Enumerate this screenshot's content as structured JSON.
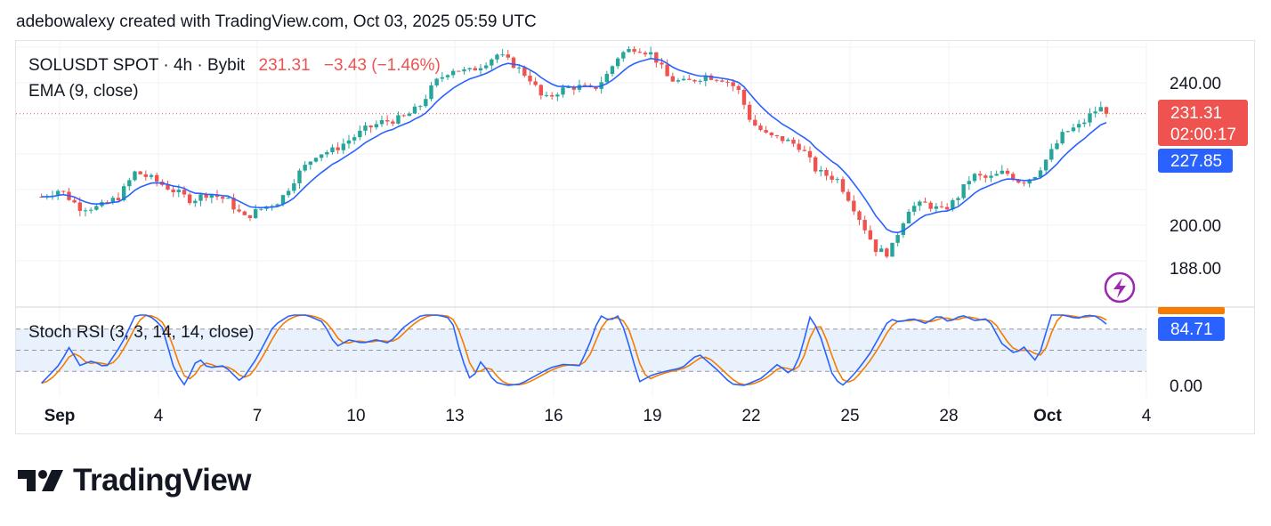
{
  "caption": "adebowalexy created with TradingView.com, Oct 03, 2025 05:59 UTC",
  "legend": {
    "symbol": "SOLUSDT SPOT · 4h · Bybit",
    "last_price": "231.31",
    "change": "−3.43 (−1.46%)",
    "ema_label": "EMA (9, close)",
    "stoch_label": "Stoch RSI (3, 3, 14, 14, close)"
  },
  "price_axis": {
    "ticks": [
      {
        "value": 240,
        "label": "240.00"
      },
      {
        "value": 200,
        "label": "200.00"
      },
      {
        "value": 188,
        "label": "188.00"
      }
    ]
  },
  "stoch_axis": {
    "ticks": [
      {
        "value": 0,
        "label": "0.00"
      }
    ]
  },
  "tags": {
    "price": "231.31",
    "countdown": "02:00:17",
    "ema": "227.85",
    "stoch": "84.71"
  },
  "colors": {
    "up": "#26a69a",
    "down": "#ef5350",
    "ema": "#2962ff",
    "k_line": "#2962ff",
    "d_line": "#f57c00",
    "stoch_band": "#e8f1fc",
    "price_tag": "#ef5350",
    "ema_tag": "#2962ff",
    "stoch_tag_blue": "#2962ff",
    "stoch_tag_orange": "#f57c00",
    "lightning": "#9c27b0"
  },
  "logo_text": "TradingView",
  "lightning_icon": "lightning-bolt-icon",
  "chart_data": [
    {
      "type": "candlestick",
      "title": "SOLUSDT SPOT · 4h · Bybit",
      "x_labels": [
        {
          "day": 1,
          "label": "Sep"
        },
        {
          "day": 4,
          "label": "4"
        },
        {
          "day": 7,
          "label": "7"
        },
        {
          "day": 10,
          "label": "10"
        },
        {
          "day": 13,
          "label": "13"
        },
        {
          "day": 16,
          "label": "16"
        },
        {
          "day": 19,
          "label": "19"
        },
        {
          "day": 22,
          "label": "22"
        },
        {
          "day": 25,
          "label": "25"
        },
        {
          "day": 28,
          "label": "28"
        },
        {
          "day": 31,
          "label": "Oct"
        },
        {
          "day": 34,
          "label": "4"
        }
      ],
      "ylim": [
        180,
        250
      ],
      "bars_per_day": 6,
      "x_start_day": 0.45,
      "close_anchors": [
        [
          0.45,
          208
        ],
        [
          1.0,
          210
        ],
        [
          1.6,
          205
        ],
        [
          2.2,
          205
        ],
        [
          2.8,
          208
        ],
        [
          3.3,
          215
        ],
        [
          3.8,
          213
        ],
        [
          4.4,
          210
        ],
        [
          5.0,
          207
        ],
        [
          5.5,
          209
        ],
        [
          6.1,
          207
        ],
        [
          6.6,
          202
        ],
        [
          7.2,
          205
        ],
        [
          7.7,
          207
        ],
        [
          8.2,
          214
        ],
        [
          8.8,
          220
        ],
        [
          9.3,
          221
        ],
        [
          9.8,
          224
        ],
        [
          10.3,
          227
        ],
        [
          10.8,
          229
        ],
        [
          11.4,
          230
        ],
        [
          11.9,
          233
        ],
        [
          12.4,
          240
        ],
        [
          12.9,
          244
        ],
        [
          13.4,
          243
        ],
        [
          13.8,
          245
        ],
        [
          14.3,
          248
        ],
        [
          14.8,
          245
        ],
        [
          15.3,
          241
        ],
        [
          15.7,
          235
        ],
        [
          16.2,
          238
        ],
        [
          16.7,
          239
        ],
        [
          17.2,
          238
        ],
        [
          17.6,
          242
        ],
        [
          18.0,
          248
        ],
        [
          18.5,
          250
        ],
        [
          19.0,
          248
        ],
        [
          19.5,
          241
        ],
        [
          20.0,
          240
        ],
        [
          20.6,
          242
        ],
        [
          21.2,
          241
        ],
        [
          21.6,
          238
        ],
        [
          22.0,
          229
        ],
        [
          22.5,
          225
        ],
        [
          23.0,
          224
        ],
        [
          23.5,
          222
        ],
        [
          24.0,
          215
        ],
        [
          24.6,
          213
        ],
        [
          25.0,
          207
        ],
        [
          25.4,
          200
        ],
        [
          25.8,
          193
        ],
        [
          26.2,
          192
        ],
        [
          26.5,
          199
        ],
        [
          26.8,
          205
        ],
        [
          27.3,
          206
        ],
        [
          27.8,
          204
        ],
        [
          28.2,
          207
        ],
        [
          28.7,
          214
        ],
        [
          29.2,
          213
        ],
        [
          29.7,
          215
        ],
        [
          30.2,
          212
        ],
        [
          30.6,
          214
        ],
        [
          31.0,
          219
        ],
        [
          31.5,
          226
        ],
        [
          32.0,
          228
        ],
        [
          32.4,
          232
        ],
        [
          32.7,
          233
        ],
        [
          32.85,
          231.31
        ]
      ],
      "series": [
        {
          "name": "EMA (9, close)",
          "last_value": 227.85
        }
      ],
      "last": {
        "price": 231.31,
        "change": -3.43,
        "change_pct": -1.46
      }
    },
    {
      "type": "line",
      "title": "Stoch RSI (3, 3, 14, 14, close)",
      "ylim": [
        0,
        100
      ],
      "bands": [
        20,
        50,
        80
      ],
      "series": [
        {
          "name": "K",
          "last_value": 84.71
        }
      ],
      "k_anchors": [
        [
          0.45,
          3
        ],
        [
          1.0,
          30
        ],
        [
          1.3,
          55
        ],
        [
          1.6,
          28
        ],
        [
          2.0,
          35
        ],
        [
          2.4,
          25
        ],
        [
          2.9,
          60
        ],
        [
          3.3,
          100
        ],
        [
          3.7,
          100
        ],
        [
          4.1,
          85
        ],
        [
          4.5,
          20
        ],
        [
          4.8,
          0
        ],
        [
          5.2,
          40
        ],
        [
          5.5,
          25
        ],
        [
          6.0,
          28
        ],
        [
          6.5,
          5
        ],
        [
          7.0,
          40
        ],
        [
          7.5,
          85
        ],
        [
          8.0,
          100
        ],
        [
          8.5,
          100
        ],
        [
          9.0,
          90
        ],
        [
          9.4,
          55
        ],
        [
          9.8,
          65
        ],
        [
          10.2,
          60
        ],
        [
          10.6,
          65
        ],
        [
          11.0,
          60
        ],
        [
          11.5,
          85
        ],
        [
          12.0,
          100
        ],
        [
          12.5,
          100
        ],
        [
          12.9,
          95
        ],
        [
          13.2,
          40
        ],
        [
          13.5,
          5
        ],
        [
          13.8,
          35
        ],
        [
          14.2,
          5
        ],
        [
          14.6,
          0
        ],
        [
          15.0,
          2
        ],
        [
          15.5,
          15
        ],
        [
          15.9,
          25
        ],
        [
          16.3,
          30
        ],
        [
          16.8,
          28
        ],
        [
          17.1,
          60
        ],
        [
          17.4,
          100
        ],
        [
          17.7,
          92
        ],
        [
          18.0,
          100
        ],
        [
          18.3,
          55
        ],
        [
          18.6,
          5
        ],
        [
          19.0,
          15
        ],
        [
          19.4,
          20
        ],
        [
          19.9,
          25
        ],
        [
          20.4,
          45
        ],
        [
          20.9,
          25
        ],
        [
          21.4,
          2
        ],
        [
          21.8,
          0
        ],
        [
          22.3,
          10
        ],
        [
          22.8,
          30
        ],
        [
          23.2,
          15
        ],
        [
          23.5,
          45
        ],
        [
          23.8,
          100
        ],
        [
          24.1,
          70
        ],
        [
          24.5,
          10
        ],
        [
          24.8,
          0
        ],
        [
          25.2,
          20
        ],
        [
          25.6,
          45
        ],
        [
          25.9,
          70
        ],
        [
          26.2,
          95
        ],
        [
          26.5,
          90
        ],
        [
          26.9,
          95
        ],
        [
          27.3,
          88
        ],
        [
          27.7,
          100
        ],
        [
          28.0,
          90
        ],
        [
          28.4,
          100
        ],
        [
          28.8,
          92
        ],
        [
          29.2,
          95
        ],
        [
          29.6,
          60
        ],
        [
          30.0,
          45
        ],
        [
          30.3,
          55
        ],
        [
          30.6,
          35
        ],
        [
          30.8,
          50
        ],
        [
          31.1,
          100
        ],
        [
          31.5,
          100
        ],
        [
          31.9,
          95
        ],
        [
          32.2,
          100
        ],
        [
          32.5,
          98
        ],
        [
          32.85,
          84.71
        ]
      ]
    }
  ]
}
